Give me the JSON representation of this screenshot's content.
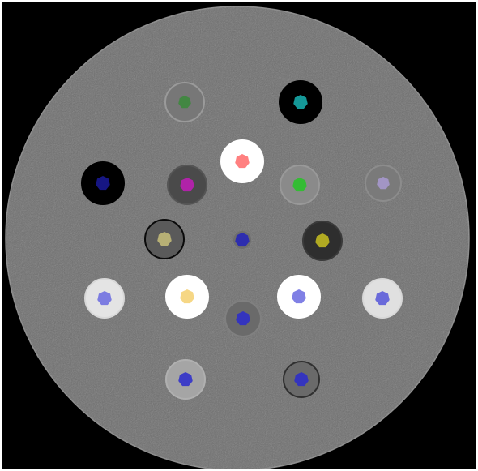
{
  "scan": {
    "background_color": "#000000",
    "phantom_fill": "#6e6e6e",
    "phantom_edge": "#8a8a8a"
  },
  "inserts": [
    {
      "name": "insert-top-left-faint",
      "insert_tone": "#777777",
      "ring": "#9a9a9a",
      "marker_color": "#3a8a3a",
      "marker_shape": "heptagon"
    },
    {
      "name": "insert-top-right-air",
      "insert_tone": "#000000",
      "ring": "#000000",
      "marker_color": "#19b3b3",
      "marker_shape": "heptagon"
    },
    {
      "name": "insert-center-top-dense",
      "insert_tone": "#ffffff",
      "ring": "#ffffff",
      "marker_color": "#ff6a6a",
      "marker_shape": "heptagon"
    },
    {
      "name": "insert-left-air",
      "insert_tone": "#000000",
      "ring": "#000000",
      "marker_color": "#1a1a9a",
      "marker_shape": "heptagon"
    },
    {
      "name": "insert-mid-left-dark",
      "insert_tone": "#4a4a4a",
      "ring": "#555555",
      "marker_color": "#c21cb8",
      "marker_shape": "heptagon"
    },
    {
      "name": "insert-mid-right-light",
      "insert_tone": "#8a8a8a",
      "ring": "#999999",
      "marker_color": "#25c425",
      "marker_shape": "heptagon"
    },
    {
      "name": "insert-far-right-faint",
      "insert_tone": "#7a7a7a",
      "ring": "#8c8c8c",
      "marker_color": "#a99ad2",
      "marker_shape": "heptagon"
    },
    {
      "name": "insert-ring-left",
      "insert_tone": "#5a5a5a",
      "ring": "#0a0a0a",
      "marker_color": "#c8c07a",
      "marker_shape": "heptagon"
    },
    {
      "name": "insert-center",
      "insert_tone": "#6e6e6e",
      "ring": "#6e6e6e",
      "marker_color": "#2222bb",
      "marker_shape": "heptagon"
    },
    {
      "name": "insert-ring-right-dark",
      "insert_tone": "#2e2e2e",
      "ring": "#3a3a3a",
      "marker_color": "#c8c020",
      "marker_shape": "heptagon"
    },
    {
      "name": "insert-left-bright",
      "insert_tone": "#e4e4e4",
      "ring": "#d8d8d8",
      "marker_color": "#6a6ae0",
      "marker_shape": "heptagon"
    },
    {
      "name": "insert-inner-left-white",
      "insert_tone": "#ffffff",
      "ring": "#ffffff",
      "marker_color": "#f5d070",
      "marker_shape": "heptagon"
    },
    {
      "name": "insert-lower-center",
      "insert_tone": "#6a6a6a",
      "ring": "#808080",
      "marker_color": "#2a2acc",
      "marker_shape": "heptagon"
    },
    {
      "name": "insert-inner-right-white",
      "insert_tone": "#ffffff",
      "ring": "#ffffff",
      "marker_color": "#6a6ae0",
      "marker_shape": "heptagon"
    },
    {
      "name": "insert-right-bright",
      "insert_tone": "#e0e0e0",
      "ring": "#d8d8d8",
      "marker_color": "#5555d8",
      "marker_shape": "heptagon"
    },
    {
      "name": "insert-bottom-left-light",
      "insert_tone": "#a5a5a5",
      "ring": "#b0b0b0",
      "marker_color": "#2a2acc",
      "marker_shape": "heptagon"
    },
    {
      "name": "insert-bottom-right",
      "insert_tone": "#6a6a6a",
      "ring": "#303030",
      "marker_color": "#2a2acc",
      "marker_shape": "heptagon"
    }
  ]
}
